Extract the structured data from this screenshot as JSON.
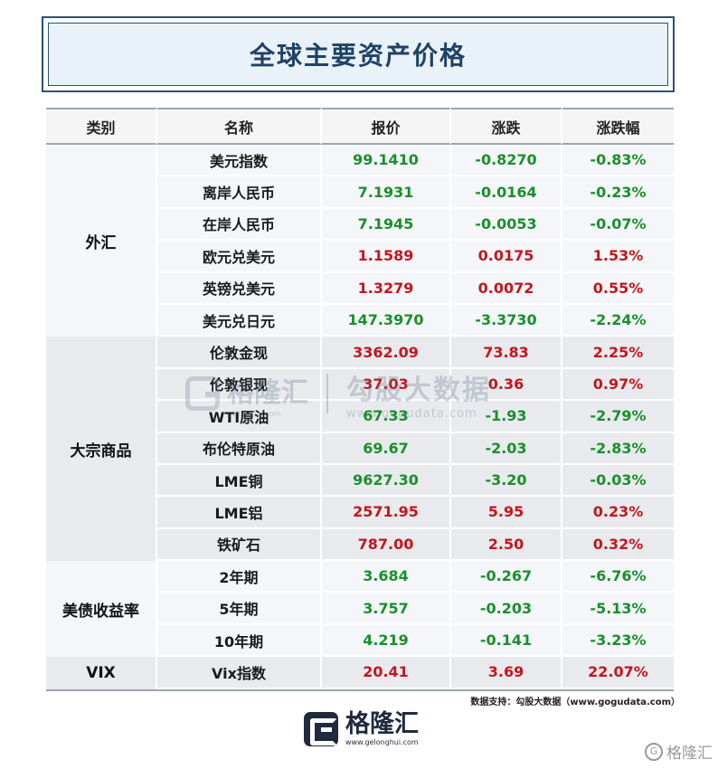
{
  "title": "全球主要资产价格",
  "headers": {
    "category": "类别",
    "name": "名称",
    "price": "报价",
    "change": "涨跌",
    "pct": "涨跌幅"
  },
  "groups": [
    {
      "label": "外汇"
    },
    {
      "label": "大宗商品"
    },
    {
      "label": "美债收益率"
    },
    {
      "label": "VIX"
    }
  ],
  "rows": [
    {
      "name": "美元指数",
      "price": "99.1410",
      "change": "-0.8270",
      "pct": "-0.83%",
      "dir": "down"
    },
    {
      "name": "离岸人民币",
      "price": "7.1931",
      "change": "-0.0164",
      "pct": "-0.23%",
      "dir": "down"
    },
    {
      "name": "在岸人民币",
      "price": "7.1945",
      "change": "-0.0053",
      "pct": "-0.07%",
      "dir": "down"
    },
    {
      "name": "欧元兑美元",
      "price": "1.1589",
      "change": "0.0175",
      "pct": "1.53%",
      "dir": "up"
    },
    {
      "name": "英镑兑美元",
      "price": "1.3279",
      "change": "0.0072",
      "pct": "0.55%",
      "dir": "up"
    },
    {
      "name": "美元兑日元",
      "price": "147.3970",
      "change": "-3.3730",
      "pct": "-2.24%",
      "dir": "down"
    },
    {
      "name": "伦敦金现",
      "price": "3362.09",
      "change": "73.83",
      "pct": "2.25%",
      "dir": "up"
    },
    {
      "name": "伦敦银现",
      "price": "37.03",
      "change": "0.36",
      "pct": "0.97%",
      "dir": "up"
    },
    {
      "name": "WTI原油",
      "price": "67.33",
      "change": "-1.93",
      "pct": "-2.79%",
      "dir": "down"
    },
    {
      "name": "布伦特原油",
      "price": "69.67",
      "change": "-2.03",
      "pct": "-2.83%",
      "dir": "down"
    },
    {
      "name": "LME铜",
      "price": "9627.30",
      "change": "-3.20",
      "pct": "-0.03%",
      "dir": "down"
    },
    {
      "name": "LME铝",
      "price": "2571.95",
      "change": "5.95",
      "pct": "0.23%",
      "dir": "up"
    },
    {
      "name": "铁矿石",
      "price": "787.00",
      "change": "2.50",
      "pct": "0.32%",
      "dir": "up"
    },
    {
      "name": "2年期",
      "price": "3.684",
      "change": "-0.267",
      "pct": "-6.76%",
      "dir": "down"
    },
    {
      "name": "5年期",
      "price": "3.757",
      "change": "-0.203",
      "pct": "-5.13%",
      "dir": "down"
    },
    {
      "name": "10年期",
      "price": "4.219",
      "change": "-0.141",
      "pct": "-3.23%",
      "dir": "down"
    },
    {
      "name": "Vix指数",
      "price": "20.41",
      "change": "3.69",
      "pct": "22.07%",
      "dir": "up"
    }
  ],
  "watermark": {
    "brand": "格隆汇",
    "brand_url": "gelonghui.com",
    "partner": "勾股大数据",
    "partner_url": "www.gogudata.com"
  },
  "source": "数据支持：勾股大数据（www.gogudata.com）",
  "logo": {
    "text": "格隆汇",
    "url": "www.gelonghui.com"
  },
  "corner_mark": "格隆汇",
  "colors": {
    "up": "#c4161c",
    "down": "#1a8f2a",
    "title": "#1f4266"
  }
}
